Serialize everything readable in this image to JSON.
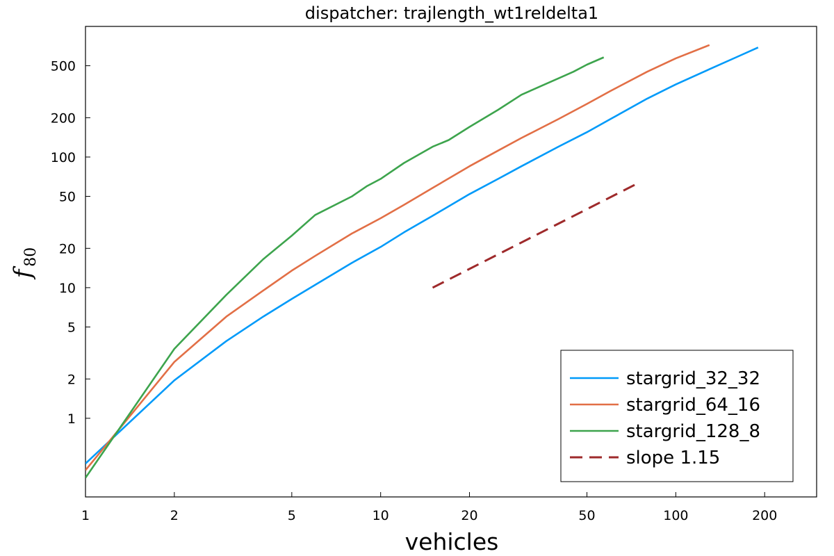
{
  "chart_data": {
    "type": "line",
    "title": "dispatcher: trajlength_wt1reldelta1",
    "xlabel": "vehicles",
    "ylabel": "f",
    "ylabel_subscript": "80",
    "xscale": "log",
    "yscale": "log",
    "xlim": [
      1,
      300
    ],
    "ylim": [
      0.25,
      1000
    ],
    "grid": false,
    "legend_position": "bottom-right",
    "x_ticks": [
      1,
      2,
      5,
      10,
      20,
      50,
      100,
      200
    ],
    "x_tick_labels": [
      "1",
      "2",
      "5",
      "10",
      "20",
      "50",
      "100",
      "200"
    ],
    "y_ticks": [
      1,
      2,
      5,
      10,
      20,
      50,
      100,
      200,
      500
    ],
    "y_tick_labels": [
      "1",
      "2",
      "5",
      "10",
      "20",
      "50",
      "100",
      "200",
      "500"
    ],
    "series": [
      {
        "name": "stargrid_32_32",
        "color": "#009af9",
        "dash": false,
        "x": [
          1,
          2,
          3,
          4,
          5,
          6,
          8,
          10,
          12,
          15,
          20,
          25,
          30,
          40,
          50,
          60,
          80,
          100,
          130,
          160,
          190
        ],
        "y": [
          0.45,
          1.95,
          3.9,
          6.0,
          8.2,
          10.5,
          15.5,
          20.5,
          26.5,
          35.5,
          52,
          68,
          85,
          120,
          155,
          195,
          280,
          360,
          470,
          580,
          690
        ]
      },
      {
        "name": "stargrid_64_16",
        "color": "#e26f46",
        "dash": false,
        "x": [
          1,
          2,
          3,
          4,
          5,
          6,
          8,
          10,
          12,
          15,
          20,
          25,
          30,
          40,
          50,
          60,
          80,
          100,
          130
        ],
        "y": [
          0.4,
          2.7,
          6.0,
          9.5,
          13.5,
          17.5,
          26,
          34,
          43,
          58,
          85,
          112,
          140,
          195,
          255,
          320,
          450,
          570,
          720
        ]
      },
      {
        "name": "stargrid_128_8",
        "color": "#3da44d",
        "dash": false,
        "x": [
          1,
          2,
          3,
          4,
          5,
          6,
          8,
          9,
          10,
          12,
          15,
          17,
          20,
          25,
          30,
          35,
          40,
          45,
          50,
          57
        ],
        "y": [
          0.35,
          3.4,
          8.8,
          16.5,
          25,
          36,
          50,
          60,
          68,
          90,
          120,
          135,
          170,
          230,
          300,
          350,
          400,
          450,
          510,
          580
        ]
      },
      {
        "name": "slope 1.15",
        "color": "#9e2a2b",
        "dash": true,
        "x": [
          15,
          75
        ],
        "y": [
          10,
          63.6
        ]
      }
    ]
  }
}
